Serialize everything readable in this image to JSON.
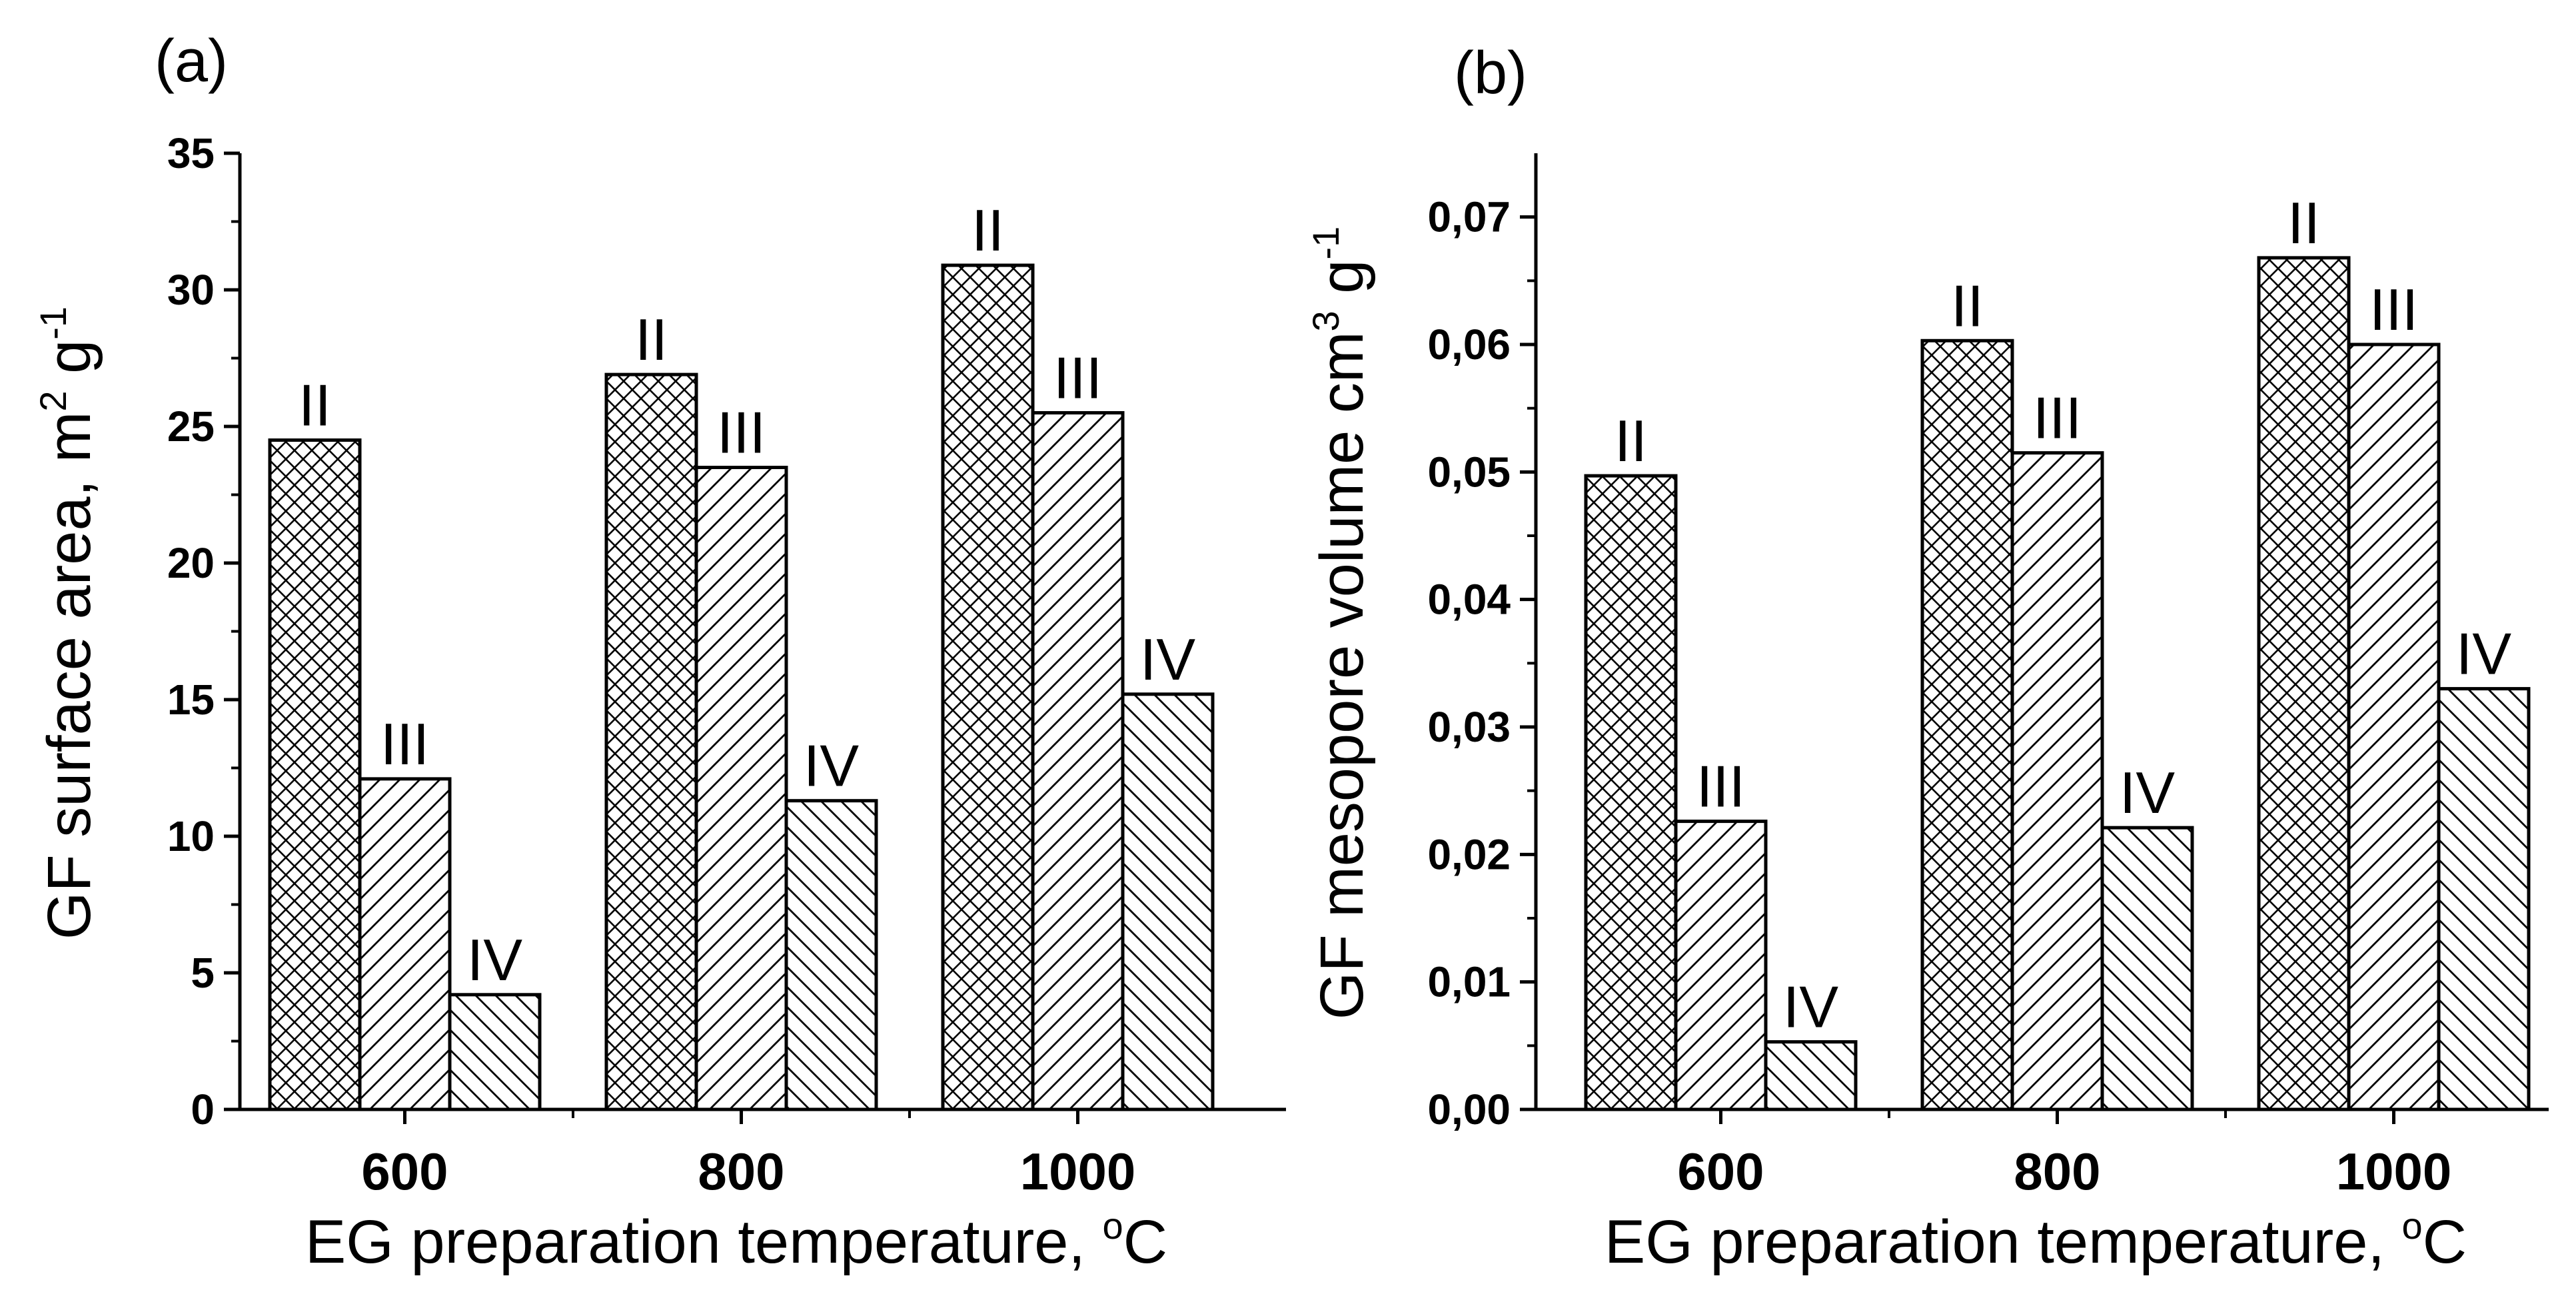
{
  "figure": {
    "patterns": {
      "II": "crosshatch",
      "III": "forward-diagonal",
      "IV": "backward-diagonal"
    },
    "colors": {
      "axis": "#000000",
      "bar_fill": "#ffffff",
      "hatch": "#000000"
    }
  },
  "chart_data": [
    {
      "type": "bar",
      "panel_label": "(a)",
      "title": "",
      "xlabel": "EG preparation temperature, ",
      "xlabel_sup": "o",
      "xlabel_tail": "C",
      "ylabel": "GF surface area, m",
      "ylabel_sup1": "2",
      "ylabel_mid": " g",
      "ylabel_sup2": "-1",
      "categories": [
        "600",
        "800",
        "1000"
      ],
      "series": [
        {
          "name": "II",
          "values": [
            24.5,
            26.9,
            30.9
          ]
        },
        {
          "name": "III",
          "values": [
            12.1,
            23.5,
            25.5
          ]
        },
        {
          "name": "IV",
          "values": [
            4.2,
            11.3,
            15.2
          ]
        }
      ],
      "ylim": [
        0,
        35
      ],
      "yticks": [
        0,
        5,
        10,
        15,
        20,
        25,
        30,
        35
      ],
      "ytick_labels": [
        "0",
        "5",
        "10",
        "15",
        "20",
        "25",
        "30",
        "35"
      ],
      "bar_labels": [
        "II",
        "III",
        "IV"
      ],
      "grid": false
    },
    {
      "type": "bar",
      "panel_label": "(b)",
      "title": "",
      "xlabel": "EG preparation temperature, ",
      "xlabel_sup": "o",
      "xlabel_tail": "C",
      "ylabel": "GF mesopore volume cm",
      "ylabel_sup1": "3",
      "ylabel_mid": " g",
      "ylabel_sup2": "-1",
      "categories": [
        "600",
        "800",
        "1000"
      ],
      "series": [
        {
          "name": "II",
          "values": [
            0.0497,
            0.0603,
            0.0668
          ]
        },
        {
          "name": "III",
          "values": [
            0.0226,
            0.0515,
            0.06
          ]
        },
        {
          "name": "IV",
          "values": [
            0.0053,
            0.0221,
            0.033
          ]
        }
      ],
      "ylim": [
        0,
        0.075
      ],
      "yticks": [
        0,
        0.01,
        0.02,
        0.03,
        0.04,
        0.05,
        0.06,
        0.07
      ],
      "ytick_labels": [
        "0,00",
        "0,01",
        "0,02",
        "0,03",
        "0,04",
        "0,05",
        "0,06",
        "0,07"
      ],
      "bar_labels": [
        "II",
        "III",
        "IV"
      ],
      "grid": false
    }
  ]
}
